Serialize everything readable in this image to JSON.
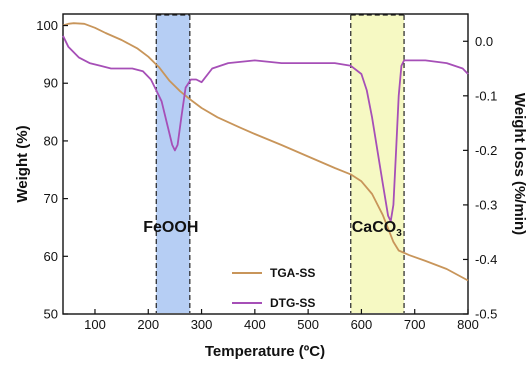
{
  "chart_data": {
    "type": "line",
    "xlabel": "Temperature (ºC)",
    "ylabel_left": "Weight (%)",
    "ylabel_right": "Weight loss (%/min)",
    "xlim": [
      40,
      800
    ],
    "ylim_left": [
      50,
      102
    ],
    "ylim_right": [
      -0.5,
      0.05
    ],
    "x_ticks": [
      100,
      200,
      300,
      400,
      500,
      600,
      700,
      800
    ],
    "x_tick_labels": [
      "100",
      "200",
      "300",
      "400",
      "500",
      "600",
      "700",
      "800"
    ],
    "yleft_ticks": [
      50,
      60,
      70,
      80,
      90,
      100
    ],
    "yleft_tick_labels": [
      "50",
      "60",
      "70",
      "80",
      "90",
      "100"
    ],
    "yright_ticks": [
      0.0,
      -0.1,
      -0.2,
      -0.3,
      -0.4,
      -0.5
    ],
    "yright_tick_labels": [
      "0.0",
      "-0.1",
      "-0.2",
      "-0.3",
      "-0.4",
      "-0.5"
    ],
    "series": [
      {
        "name": "TGA-SS",
        "axis": "left",
        "color": "#c8955a",
        "x": [
          40,
          50,
          60,
          80,
          100,
          120,
          150,
          180,
          200,
          220,
          240,
          260,
          280,
          300,
          330,
          370,
          400,
          450,
          500,
          550,
          580,
          600,
          620,
          640,
          660,
          670,
          690,
          720,
          760,
          800
        ],
        "y": [
          100,
          100.3,
          100.4,
          100.3,
          99.6,
          98.7,
          97.5,
          96.0,
          94.6,
          92.8,
          90.4,
          88.6,
          87.1,
          85.7,
          84.1,
          82.4,
          81.2,
          79.3,
          77.3,
          75.3,
          74.2,
          73.0,
          70.8,
          67.2,
          62.5,
          61.0,
          60.2,
          59.2,
          57.8,
          55.8
        ]
      },
      {
        "name": "DTG-SS",
        "axis": "right",
        "color": "#a64fb7",
        "x": [
          40,
          50,
          70,
          90,
          110,
          130,
          150,
          170,
          190,
          205,
          215,
          225,
          235,
          245,
          250,
          255,
          262,
          270,
          280,
          290,
          300,
          320,
          350,
          400,
          450,
          500,
          550,
          580,
          600,
          610,
          620,
          630,
          640,
          650,
          655,
          660,
          665,
          670,
          675,
          680,
          690,
          720,
          760,
          790,
          800
        ],
        "y": [
          0.01,
          -0.01,
          -0.03,
          -0.04,
          -0.045,
          -0.05,
          -0.05,
          -0.05,
          -0.055,
          -0.07,
          -0.09,
          -0.11,
          -0.15,
          -0.19,
          -0.2,
          -0.19,
          -0.14,
          -0.085,
          -0.07,
          -0.07,
          -0.075,
          -0.05,
          -0.04,
          -0.035,
          -0.04,
          -0.04,
          -0.04,
          -0.045,
          -0.06,
          -0.09,
          -0.14,
          -0.2,
          -0.26,
          -0.32,
          -0.33,
          -0.3,
          -0.2,
          -0.1,
          -0.045,
          -0.035,
          -0.035,
          -0.035,
          -0.04,
          -0.05,
          -0.06
        ]
      }
    ],
    "shaded_regions": [
      {
        "x_start": 215,
        "x_end": 278,
        "color": "#a9c5f2",
        "label": "FeOOH"
      },
      {
        "x_start": 580,
        "x_end": 680,
        "color": "#f4f8b8",
        "label": "CaCO",
        "label_subscript": "3"
      }
    ],
    "legend": {
      "placement": "center-right",
      "entries": [
        "TGA-SS",
        "DTG-SS"
      ]
    },
    "grid": false
  }
}
